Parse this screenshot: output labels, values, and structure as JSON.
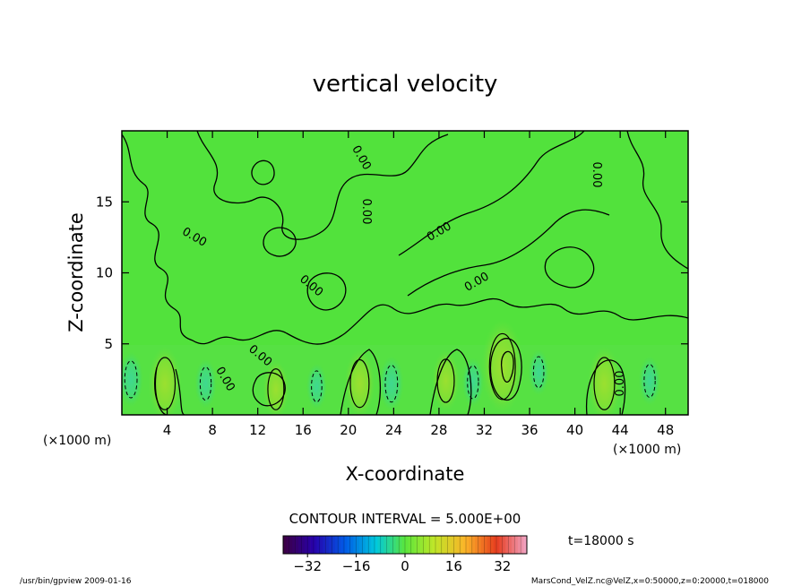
{
  "chart_data": {
    "type": "heatmap",
    "title": "vertical velocity",
    "xlabel": "X-coordinate",
    "ylabel": "Z-coordinate",
    "x_unit": "(×1000 m)",
    "x_unit_right": "(×1000 m)",
    "xlim": [
      0,
      50
    ],
    "ylim": [
      0,
      20
    ],
    "x_ticks": [
      4,
      8,
      12,
      16,
      20,
      24,
      28,
      32,
      36,
      40,
      44,
      48
    ],
    "y_ticks": [
      5,
      10,
      15
    ],
    "contour_interval_text": "CONTOUR INTERVAL = 5.000E+00",
    "contour_label": "0.00",
    "time_text": "t=18000 s",
    "colorbar": {
      "range": [
        -40,
        40
      ],
      "ticks": [
        -32,
        -16,
        0,
        16,
        32
      ]
    },
    "updraft_cores": [
      {
        "x": 3.8,
        "z": 2.2,
        "value": 12
      },
      {
        "x": 13.6,
        "z": 1.8,
        "value": 7
      },
      {
        "x": 21.0,
        "z": 2.2,
        "value": 10
      },
      {
        "x": 28.6,
        "z": 2.4,
        "value": 8
      },
      {
        "x": 33.6,
        "z": 3.4,
        "value": 18
      },
      {
        "x": 42.6,
        "z": 2.2,
        "value": 12
      }
    ],
    "downdraft_cores": [
      {
        "x": 0.8,
        "z": 2.5,
        "value": -8
      },
      {
        "x": 7.4,
        "z": 2.2,
        "value": -6
      },
      {
        "x": 17.2,
        "z": 2.0,
        "value": -5
      },
      {
        "x": 23.8,
        "z": 2.2,
        "value": -8
      },
      {
        "x": 31.0,
        "z": 2.3,
        "value": -6
      },
      {
        "x": 36.8,
        "z": 3.0,
        "value": -5
      },
      {
        "x": 46.6,
        "z": 2.4,
        "value": -6
      }
    ]
  },
  "footer": {
    "left": "/usr/bin/gpview   2009-01-16",
    "right": "MarsCond_VelZ.nc@VelZ,x=0:50000,z=0:20000,t=018000"
  }
}
